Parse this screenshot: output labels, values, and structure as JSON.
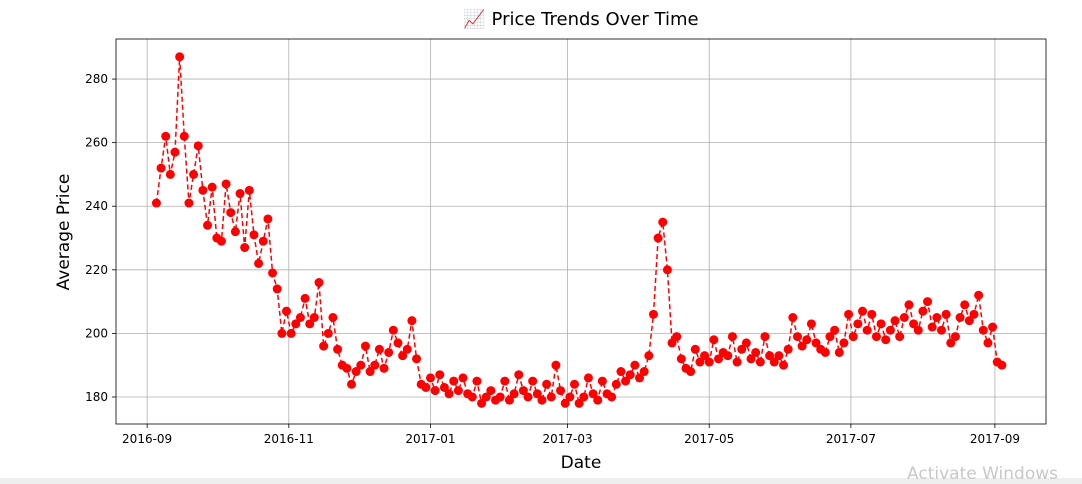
{
  "chart_data": {
    "type": "line",
    "title": "📈 Price Trends Over Time",
    "xlabel": "Date",
    "ylabel": "Average Price",
    "series": [
      {
        "color": "#ff0000",
        "values": [
          241,
          252,
          262,
          250,
          257,
          287,
          262,
          241,
          250,
          259,
          245,
          234,
          246,
          230,
          229,
          247,
          238,
          232,
          244,
          227,
          245,
          231,
          222,
          229,
          236,
          219,
          214,
          200,
          207,
          200,
          203,
          205,
          211,
          203,
          205,
          216,
          196,
          200,
          205,
          195,
          190,
          189,
          184,
          188,
          190,
          196,
          188,
          190,
          195,
          189,
          194,
          201,
          197,
          193,
          195,
          204,
          192,
          184,
          183,
          186,
          182,
          187,
          183,
          181,
          185,
          182,
          186,
          181,
          180,
          185,
          178,
          180,
          182,
          179,
          180,
          185,
          179,
          181,
          187,
          182,
          180,
          185,
          181,
          179,
          184,
          180,
          190,
          182,
          178,
          180,
          184,
          178,
          180,
          186,
          181,
          179,
          185,
          181,
          180,
          184,
          188,
          185,
          187,
          190,
          186,
          188,
          193,
          206,
          230,
          235,
          220,
          197,
          199,
          192,
          189,
          188,
          195,
          191,
          193,
          191,
          198,
          192,
          194,
          193,
          199,
          191,
          195,
          197,
          192,
          194,
          191,
          199,
          193,
          191,
          193,
          190,
          195,
          205,
          199,
          196,
          198,
          203,
          197,
          195,
          194,
          199,
          201,
          194,
          197,
          206,
          199,
          203,
          207,
          201,
          206,
          199,
          203,
          198,
          201,
          204,
          199,
          205,
          209,
          203,
          201,
          207,
          210,
          202,
          205,
          201,
          206,
          197,
          199,
          205,
          209,
          204,
          206,
          212,
          201,
          197,
          202,
          191,
          190
        ]
      }
    ],
    "xlim": [
      -8.7,
      191.5
    ],
    "xticks": [
      {
        "value": -2,
        "label": "2016-09"
      },
      {
        "value": 28.5,
        "label": "2016-11"
      },
      {
        "value": 59,
        "label": "2017-01"
      },
      {
        "value": 88.5,
        "label": "2017-03"
      },
      {
        "value": 119,
        "label": "2017-05"
      },
      {
        "value": 149.5,
        "label": "2017-07"
      },
      {
        "value": 180.5,
        "label": "2017-09"
      }
    ],
    "ylim": [
      171.5,
      292.6
    ],
    "yticks": [
      180,
      200,
      220,
      240,
      260,
      280
    ],
    "grid": true,
    "watermark": "Activate Windows"
  }
}
